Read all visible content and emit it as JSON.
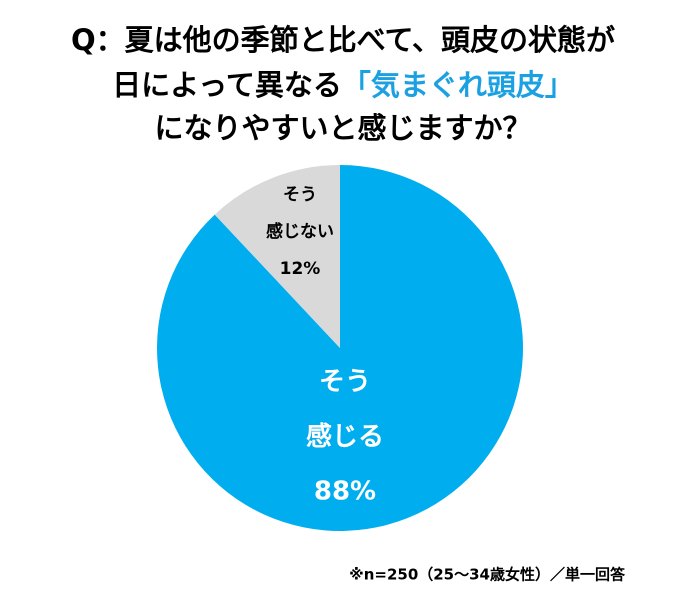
{
  "chart_data": {
    "type": "pie",
    "title": [
      "Q：夏は他の季節と比べて、頭皮の状態が",
      "日によって異なる",
      "「気まぐれ頭皮」",
      "になりやすいと感じますか？"
    ],
    "title_highlight": [
      false,
      false,
      true,
      false
    ],
    "highlight_color": "#1ba1e2",
    "categories": [
      "そう\n感じる",
      "そう\n感じない"
    ],
    "values": [
      88,
      12
    ],
    "value_labels": [
      "88%",
      "12%"
    ],
    "colors": [
      "#00aeef",
      "#d9d9d9"
    ],
    "label_colors": [
      "#ffffff",
      "#000000"
    ],
    "note": "※n=250（25～34歳女性）／単一回答"
  }
}
